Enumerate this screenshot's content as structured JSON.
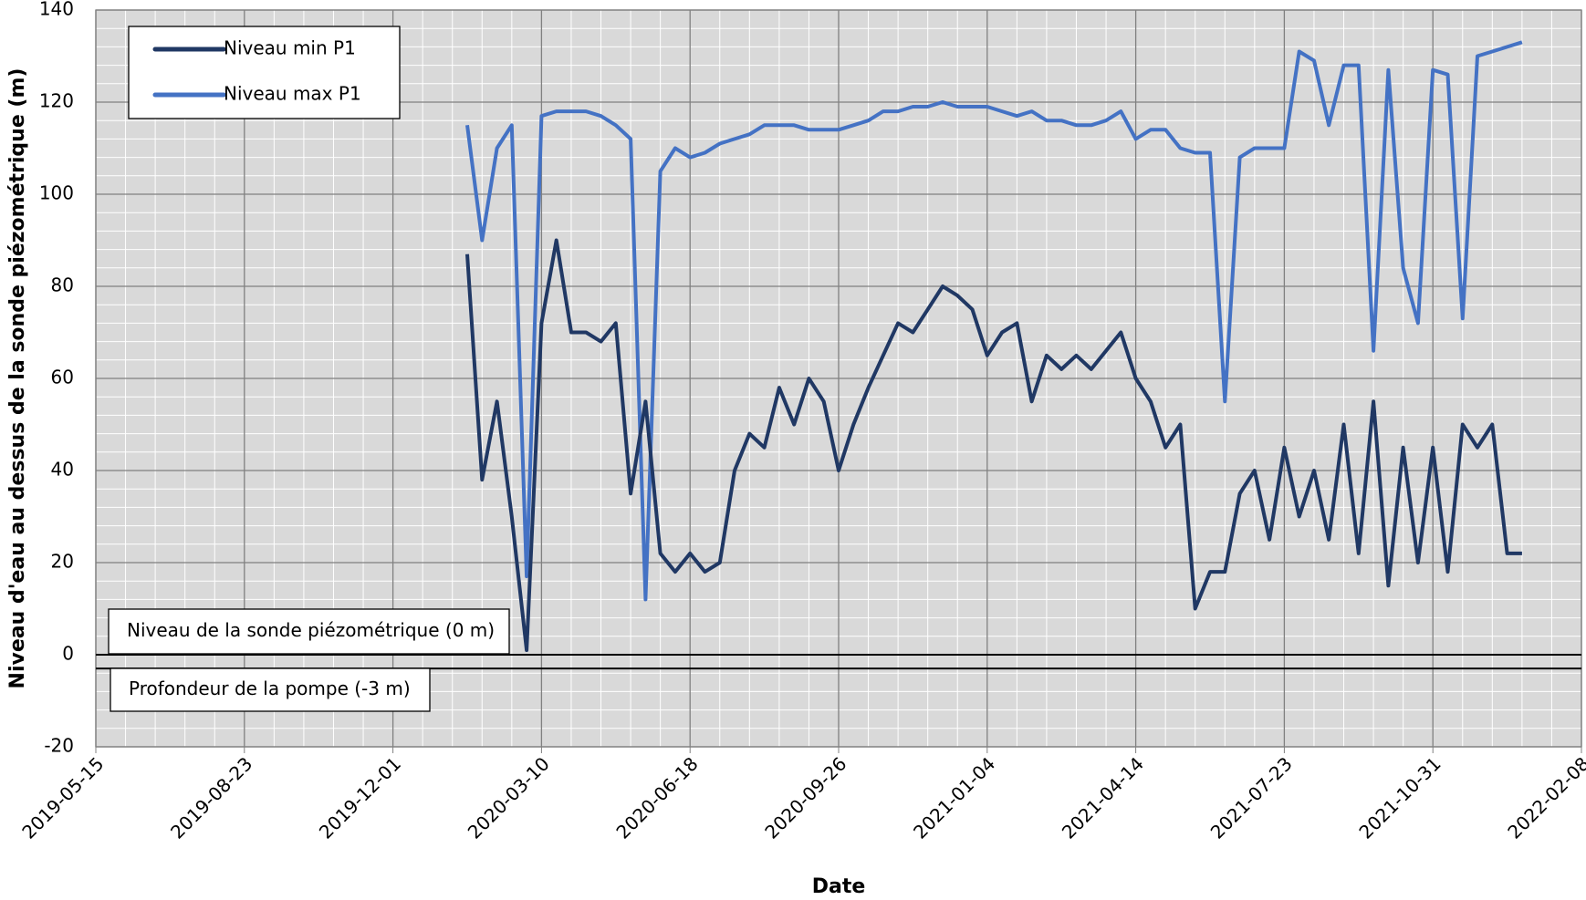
{
  "chart_data": {
    "type": "line",
    "x_label": "Date",
    "y_label": "Niveau d'eau au dessus de la sonde piézométrique (m)",
    "xlim": [
      "2019-05-15",
      "2022-02-08"
    ],
    "xticks": [
      "2019-05-15",
      "2019-08-23",
      "2019-12-01",
      "2020-03-10",
      "2020-06-18",
      "2020-09-26",
      "2021-01-04",
      "2021-04-14",
      "2021-07-23",
      "2021-10-31",
      "2022-02-08"
    ],
    "ylim": [
      -20,
      140
    ],
    "yticks": [
      -20,
      0,
      20,
      40,
      60,
      80,
      100,
      120,
      140
    ],
    "grid": true,
    "legend": "upper left",
    "x": [
      "2020-01-20",
      "2020-01-30",
      "2020-02-09",
      "2020-02-19",
      "2020-02-29",
      "2020-03-10",
      "2020-03-20",
      "2020-03-30",
      "2020-04-09",
      "2020-04-19",
      "2020-04-29",
      "2020-05-09",
      "2020-05-19",
      "2020-05-29",
      "2020-06-08",
      "2020-06-18",
      "2020-06-28",
      "2020-07-08",
      "2020-07-18",
      "2020-07-28",
      "2020-08-07",
      "2020-08-17",
      "2020-08-27",
      "2020-09-06",
      "2020-09-16",
      "2020-09-26",
      "2020-10-06",
      "2020-10-16",
      "2020-10-26",
      "2020-11-05",
      "2020-11-15",
      "2020-11-25",
      "2020-12-05",
      "2020-12-15",
      "2020-12-25",
      "2021-01-04",
      "2021-01-14",
      "2021-01-24",
      "2021-02-03",
      "2021-02-13",
      "2021-02-23",
      "2021-03-05",
      "2021-03-15",
      "2021-03-25",
      "2021-04-04",
      "2021-04-14",
      "2021-04-24",
      "2021-05-04",
      "2021-05-14",
      "2021-05-24",
      "2021-06-03",
      "2021-06-13",
      "2021-06-23",
      "2021-07-03",
      "2021-07-13",
      "2021-07-23",
      "2021-08-02",
      "2021-08-12",
      "2021-08-22",
      "2021-09-01",
      "2021-09-11",
      "2021-09-21",
      "2021-10-01",
      "2021-10-11",
      "2021-10-21",
      "2021-10-31",
      "2021-11-10",
      "2021-11-20",
      "2021-11-30",
      "2021-12-10",
      "2021-12-20",
      "2021-12-30"
    ],
    "series": [
      {
        "name": "Niveau min P1",
        "color": "#203864",
        "values": [
          87,
          38,
          55,
          30,
          1,
          72,
          90,
          70,
          70,
          68,
          72,
          35,
          55,
          22,
          18,
          22,
          18,
          20,
          40,
          48,
          45,
          58,
          50,
          60,
          55,
          40,
          50,
          58,
          65,
          72,
          70,
          75,
          80,
          78,
          75,
          65,
          70,
          72,
          55,
          65,
          62,
          65,
          62,
          66,
          70,
          60,
          55,
          45,
          50,
          10,
          18,
          18,
          35,
          40,
          25,
          45,
          30,
          40,
          25,
          50,
          22,
          55,
          15,
          45,
          20,
          45,
          18,
          50,
          45,
          50,
          22,
          22
        ]
      },
      {
        "name": "Niveau max P1",
        "color": "#4472c4",
        "values": [
          115,
          90,
          110,
          115,
          17,
          117,
          118,
          118,
          118,
          117,
          115,
          112,
          12,
          105,
          110,
          108,
          109,
          111,
          112,
          113,
          115,
          115,
          115,
          114,
          114,
          114,
          115,
          116,
          118,
          118,
          119,
          119,
          120,
          119,
          119,
          119,
          118,
          117,
          118,
          116,
          116,
          115,
          115,
          116,
          118,
          112,
          114,
          114,
          110,
          109,
          109,
          55,
          108,
          110,
          110,
          110,
          131,
          129,
          115,
          128,
          128,
          66,
          127,
          84,
          72,
          127,
          126,
          73,
          130,
          131,
          132,
          133
        ]
      }
    ],
    "hlines": [
      {
        "value": 0,
        "label": "Niveau de la sonde piézométrique (0 m)"
      },
      {
        "value": -3,
        "label": "Profondeur de la pompe (-3 m)"
      }
    ]
  }
}
